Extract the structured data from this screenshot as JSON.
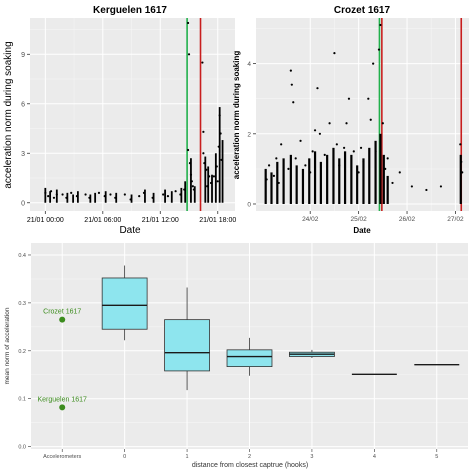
{
  "chart_data": [
    {
      "type": "scatter",
      "title": "Kerguelen 1617",
      "xlabel": "Date",
      "ylabel": "acceleration norm during soaking",
      "x_ticks": [
        "21/01 00:00",
        "21/01 06:00",
        "21/01 12:00",
        "21/01 18:00"
      ],
      "x_tick_hours": [
        0,
        6,
        12,
        18
      ],
      "xlim_hours": [
        -1.6,
        19.8
      ],
      "y_ticks": [
        "0",
        "3",
        "6",
        "9"
      ],
      "ylim": [
        -0.5,
        11.2
      ],
      "green_line_hour": 14.8,
      "red_line_hour": 16.2,
      "grid": true,
      "points": [
        [
          0.0,
          0.6
        ],
        [
          0.3,
          0.4
        ],
        [
          0.6,
          0.7
        ],
        [
          0.9,
          0.3
        ],
        [
          1.2,
          0.5
        ],
        [
          1.8,
          0.5
        ],
        [
          2.2,
          0.3
        ],
        [
          2.7,
          0.6
        ],
        [
          3.3,
          0.4
        ],
        [
          4.2,
          0.5
        ],
        [
          4.6,
          0.3
        ],
        [
          5.6,
          0.6
        ],
        [
          6.2,
          0.4
        ],
        [
          6.8,
          0.5
        ],
        [
          7.3,
          0.3
        ],
        [
          8.3,
          0.5
        ],
        [
          8.9,
          0.2
        ],
        [
          9.8,
          0.4
        ],
        [
          10.3,
          0.6
        ],
        [
          11.2,
          0.3
        ],
        [
          12.3,
          0.5
        ],
        [
          12.8,
          0.4
        ],
        [
          13.6,
          0.7
        ],
        [
          14.1,
          0.5
        ],
        [
          14.5,
          0.8
        ],
        [
          14.9,
          10.9
        ],
        [
          15.0,
          9.0
        ],
        [
          14.9,
          3.2
        ],
        [
          15.1,
          2.4
        ],
        [
          15.2,
          1.7
        ],
        [
          15.3,
          1.3
        ],
        [
          15.4,
          1.0
        ],
        [
          15.5,
          0.8
        ],
        [
          16.4,
          8.5
        ],
        [
          16.5,
          4.3
        ],
        [
          16.5,
          3.0
        ],
        [
          16.6,
          2.4
        ],
        [
          16.8,
          2.0
        ],
        [
          17.1,
          1.6
        ],
        [
          17.3,
          1.2
        ],
        [
          17.6,
          1.6
        ],
        [
          17.9,
          2.2
        ],
        [
          18.1,
          3.4
        ],
        [
          18.2,
          5.3
        ],
        [
          18.3,
          4.2
        ],
        [
          18.4,
          2.6
        ],
        [
          18.0,
          1.3
        ],
        [
          16.9,
          1.0
        ]
      ],
      "bursts": [
        [
          0.0,
          0.9
        ],
        [
          0.5,
          0.7
        ],
        [
          1.2,
          0.8
        ],
        [
          2.3,
          0.6
        ],
        [
          2.9,
          0.5
        ],
        [
          3.4,
          0.7
        ],
        [
          4.7,
          0.5
        ],
        [
          5.2,
          0.6
        ],
        [
          6.3,
          0.7
        ],
        [
          7.4,
          0.6
        ],
        [
          9.0,
          0.5
        ],
        [
          10.4,
          0.8
        ],
        [
          11.3,
          0.6
        ],
        [
          12.5,
          0.8
        ],
        [
          13.2,
          0.7
        ],
        [
          14.2,
          0.9
        ],
        [
          14.6,
          1.3
        ],
        [
          15.2,
          2.7
        ],
        [
          15.6,
          1.0
        ],
        [
          16.7,
          2.8
        ],
        [
          17.0,
          2.2
        ],
        [
          17.4,
          1.7
        ],
        [
          17.8,
          3.0
        ],
        [
          18.2,
          5.8
        ],
        [
          18.5,
          3.8
        ]
      ]
    },
    {
      "type": "scatter",
      "title": "Crozet 1617",
      "xlabel": "Date",
      "ylabel": "acceleration norm during soaking",
      "x_ticks": [
        "24/02",
        "25/02",
        "26/02",
        "27/02"
      ],
      "x_tick_days": [
        1,
        2,
        3,
        4
      ],
      "xlim_days": [
        -0.12,
        4.28
      ],
      "y_ticks": [
        "0",
        "2",
        "4"
      ],
      "ylim": [
        -0.2,
        5.3
      ],
      "green_line_day": 2.43,
      "red_line_day": 2.48,
      "red_line_day_2": 4.12,
      "grid": true,
      "points": [
        [
          0.1,
          0.7
        ],
        [
          0.15,
          1.1
        ],
        [
          0.25,
          0.8
        ],
        [
          0.3,
          1.3
        ],
        [
          0.35,
          0.6
        ],
        [
          0.4,
          1.7
        ],
        [
          0.55,
          1.0
        ],
        [
          0.6,
          3.8
        ],
        [
          0.62,
          3.4
        ],
        [
          0.65,
          2.9
        ],
        [
          0.7,
          1.3
        ],
        [
          0.8,
          1.8
        ],
        [
          0.9,
          1.1
        ],
        [
          1.0,
          0.9
        ],
        [
          1.05,
          1.5
        ],
        [
          1.1,
          2.1
        ],
        [
          1.15,
          3.3
        ],
        [
          1.2,
          2.0
        ],
        [
          1.3,
          1.4
        ],
        [
          1.4,
          2.3
        ],
        [
          1.5,
          4.3
        ],
        [
          1.55,
          1.7
        ],
        [
          1.6,
          1.1
        ],
        [
          1.7,
          1.6
        ],
        [
          1.75,
          2.3
        ],
        [
          1.8,
          3.0
        ],
        [
          1.9,
          1.5
        ],
        [
          2.0,
          0.9
        ],
        [
          2.05,
          1.6
        ],
        [
          2.1,
          1.2
        ],
        [
          2.2,
          3.0
        ],
        [
          2.25,
          2.4
        ],
        [
          2.3,
          4.0
        ],
        [
          2.35,
          1.5
        ],
        [
          2.42,
          4.4
        ],
        [
          2.45,
          5.1
        ],
        [
          2.5,
          2.3
        ],
        [
          2.55,
          1.0
        ],
        [
          2.6,
          1.3
        ],
        [
          2.7,
          0.6
        ],
        [
          2.85,
          0.9
        ],
        [
          3.1,
          0.5
        ],
        [
          3.4,
          0.4
        ],
        [
          3.7,
          0.5
        ],
        [
          4.1,
          1.7
        ],
        [
          4.12,
          1.2
        ],
        [
          4.14,
          0.9
        ]
      ],
      "bursts": [
        [
          0.08,
          1.0
        ],
        [
          0.2,
          0.9
        ],
        [
          0.32,
          1.2
        ],
        [
          0.45,
          1.3
        ],
        [
          0.6,
          1.4
        ],
        [
          0.72,
          1.1
        ],
        [
          0.85,
          1.0
        ],
        [
          0.98,
          1.3
        ],
        [
          1.1,
          1.5
        ],
        [
          1.22,
          1.2
        ],
        [
          1.35,
          1.4
        ],
        [
          1.48,
          1.6
        ],
        [
          1.6,
          1.3
        ],
        [
          1.72,
          1.5
        ],
        [
          1.85,
          1.4
        ],
        [
          1.97,
          1.1
        ],
        [
          2.1,
          1.3
        ],
        [
          2.22,
          1.6
        ],
        [
          2.35,
          1.8
        ],
        [
          2.45,
          2.0
        ],
        [
          2.52,
          1.4
        ],
        [
          2.6,
          0.8
        ],
        [
          4.11,
          1.4
        ]
      ]
    },
    {
      "type": "boxplot",
      "xlabel": "distance from closest captrue (hooks)",
      "ylabel": "mean norm of acceleration",
      "categories": [
        "Accelerometers",
        "0",
        "1",
        "2",
        "3",
        "4",
        "5"
      ],
      "y_ticks": [
        "0.0",
        "0.1",
        "0.2",
        "0.3",
        "0.4"
      ],
      "ylim": [
        -0.005,
        0.425
      ],
      "grid": true,
      "boxes": [
        {
          "category": "0",
          "min": 0.222,
          "q1": 0.245,
          "median": 0.295,
          "q3": 0.352,
          "max": 0.378
        },
        {
          "category": "1",
          "min": 0.118,
          "q1": 0.158,
          "median": 0.196,
          "q3": 0.265,
          "max": 0.332
        },
        {
          "category": "2",
          "min": 0.148,
          "q1": 0.167,
          "median": 0.188,
          "q3": 0.202,
          "max": 0.227
        },
        {
          "category": "3",
          "min": 0.185,
          "q1": 0.188,
          "median": 0.193,
          "q3": 0.197,
          "max": 0.202
        },
        {
          "category": "4",
          "min": 0.151,
          "q1": 0.151,
          "median": 0.151,
          "q3": 0.151,
          "max": 0.151
        },
        {
          "category": "5",
          "min": 0.171,
          "q1": 0.171,
          "median": 0.171,
          "q3": 0.171,
          "max": 0.171
        }
      ],
      "reference_points": [
        {
          "label": "Crozet 1617",
          "category": "Accelerometers",
          "value": 0.265
        },
        {
          "label": "Kerguelen 1617",
          "category": "Accelerometers",
          "value": 0.082
        }
      ],
      "box_fill": "#8EE5EE",
      "reference_color": "#3C8C1E"
    }
  ],
  "colors": {
    "panel_bg": "#EBEBEB",
    "grid_major": "#FFFFFF",
    "green_line": "#22B14C",
    "red_line": "#C81E1E",
    "points": "#000000"
  }
}
